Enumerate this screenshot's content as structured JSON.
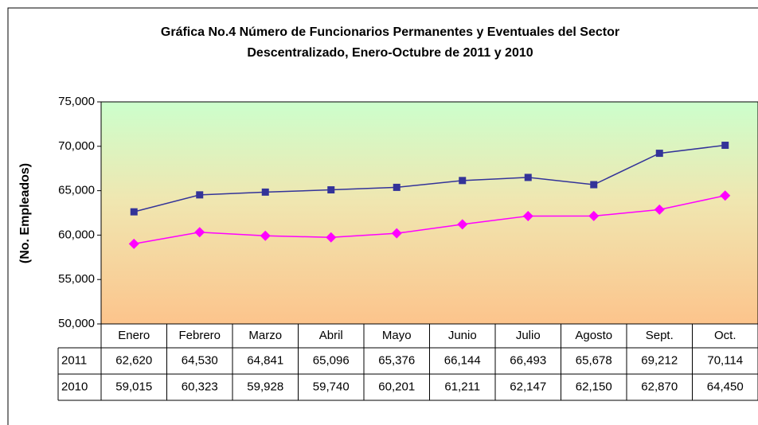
{
  "chart_data": {
    "type": "line",
    "title": [
      "Gráfica No.4 Número de Funcionarios Permanentes y Eventuales del Sector",
      "Descentralizado, Enero-Octubre de 2011 y 2010"
    ],
    "y_label": "(No. Empleados)",
    "categories": [
      "Enero",
      "Febrero",
      "Marzo",
      "Abril",
      "Mayo",
      "Junio",
      "Julio",
      "Agosto",
      "Sept.",
      "Oct."
    ],
    "series": [
      {
        "name": "2011",
        "color": "#333399",
        "marker": "square",
        "values": [
          62620,
          64530,
          64841,
          65096,
          65376,
          66144,
          66493,
          65678,
          69212,
          70114
        ],
        "value_labels": [
          "62,620",
          "64,530",
          "64,841",
          "65,096",
          "65,376",
          "66,144",
          "66,493",
          "65,678",
          "69,212",
          "70,114"
        ]
      },
      {
        "name": "2010",
        "color": "#ff00ff",
        "marker": "diamond",
        "values": [
          59015,
          60323,
          59928,
          59740,
          60201,
          61211,
          62147,
          62150,
          62870,
          64450
        ],
        "value_labels": [
          "59,015",
          "60,323",
          "59,928",
          "59,740",
          "60,201",
          "61,211",
          "62,147",
          "62,150",
          "62,870",
          "64,450"
        ]
      }
    ],
    "ylim": [
      50000,
      75000
    ],
    "yticks": [
      {
        "value": 50000,
        "label": "50,000"
      },
      {
        "value": 55000,
        "label": "55,000"
      },
      {
        "value": 60000,
        "label": "60,000"
      },
      {
        "value": 65000,
        "label": "65,000"
      },
      {
        "value": 70000,
        "label": "70,000"
      },
      {
        "value": 75000,
        "label": "75,000"
      }
    ],
    "grid": false
  }
}
